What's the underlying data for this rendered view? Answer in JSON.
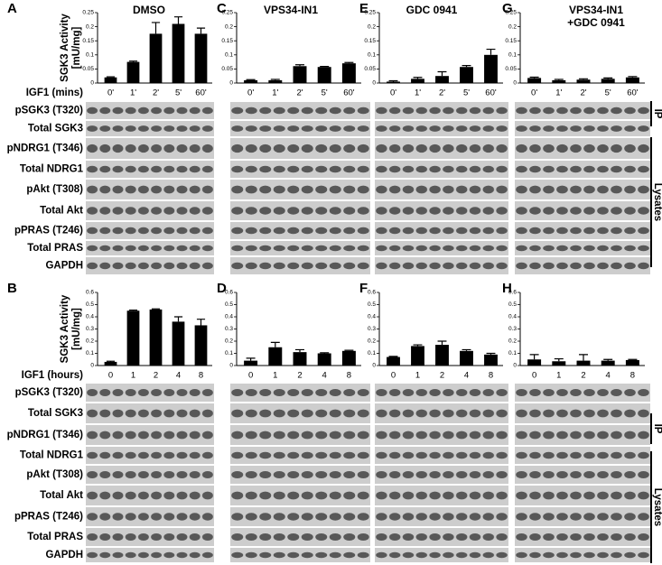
{
  "rows": [
    {
      "ylabel": [
        "SGK3 Activity",
        "[mU/mg]"
      ],
      "xlabel": "IGF1 (mins)",
      "categories": [
        "0'",
        "1'",
        "2'",
        "5'",
        "60'"
      ],
      "ylim": [
        0,
        0.25
      ],
      "yticks": [
        0,
        0.05,
        0.1,
        0.15,
        0.2,
        0.25
      ],
      "blot_labels": [
        "pSGK3 (T320)",
        "Total SGK3",
        "pNDRG1 (T346)",
        "Total NDRG1",
        "pAkt (T308)",
        "Total Akt",
        "pPRAS (T246)",
        "Total PRAS",
        "GAPDH"
      ],
      "panels": [
        {
          "letter": "A",
          "title": [
            "DMSO"
          ],
          "values": [
            0.02,
            0.075,
            0.175,
            0.21,
            0.175
          ],
          "errors": [
            0.002,
            0.003,
            0.04,
            0.025,
            0.02
          ]
        },
        {
          "letter": "C",
          "title": [
            "VPS34-IN1"
          ],
          "values": [
            0.01,
            0.01,
            0.06,
            0.057,
            0.07
          ],
          "errors": [
            0.002,
            0.003,
            0.005,
            0.002,
            0.003
          ]
        },
        {
          "letter": "E",
          "title": [
            "GDC 0941"
          ],
          "values": [
            0.005,
            0.015,
            0.025,
            0.057,
            0.1
          ],
          "errors": [
            0.003,
            0.005,
            0.015,
            0.005,
            0.02
          ]
        },
        {
          "letter": "G",
          "title": [
            "VPS34-IN1",
            "+GDC 0941"
          ],
          "values": [
            0.018,
            0.01,
            0.012,
            0.015,
            0.02
          ],
          "errors": [
            0.003,
            0.003,
            0.003,
            0.003,
            0.003
          ]
        }
      ]
    },
    {
      "ylabel": [
        "SGK3 Activity",
        "[mU/mg]"
      ],
      "xlabel": "IGF1 (hours)",
      "categories": [
        "0",
        "1",
        "2",
        "4",
        "8"
      ],
      "ylim": [
        0,
        0.6
      ],
      "yticks": [
        0,
        0.1,
        0.2,
        0.3,
        0.4,
        0.5,
        0.6
      ],
      "blot_labels": [
        "pSGK3 (T320)",
        "Total SGK3",
        "pNDRG1 (T346)",
        "Total NDRG1",
        "pAkt (T308)",
        "Total Akt",
        "pPRAS (T246)",
        "Total PRAS",
        "GAPDH"
      ],
      "panels": [
        {
          "letter": "B",
          "values": [
            0.03,
            0.45,
            0.46,
            0.36,
            0.33
          ],
          "errors": [
            0.005,
            0.005,
            0.005,
            0.04,
            0.05
          ]
        },
        {
          "letter": "D",
          "values": [
            0.04,
            0.15,
            0.11,
            0.1,
            0.12
          ],
          "errors": [
            0.02,
            0.04,
            0.02,
            0.005,
            0.005
          ]
        },
        {
          "letter": "F",
          "values": [
            0.07,
            0.16,
            0.17,
            0.12,
            0.09
          ],
          "errors": [
            0.005,
            0.01,
            0.03,
            0.01,
            0.01
          ]
        },
        {
          "letter": "H",
          "values": [
            0.05,
            0.035,
            0.04,
            0.04,
            0.045
          ],
          "errors": [
            0.04,
            0.02,
            0.05,
            0.01,
            0.005
          ]
        }
      ]
    }
  ],
  "side_labels": [
    "IP",
    "Lysates"
  ]
}
